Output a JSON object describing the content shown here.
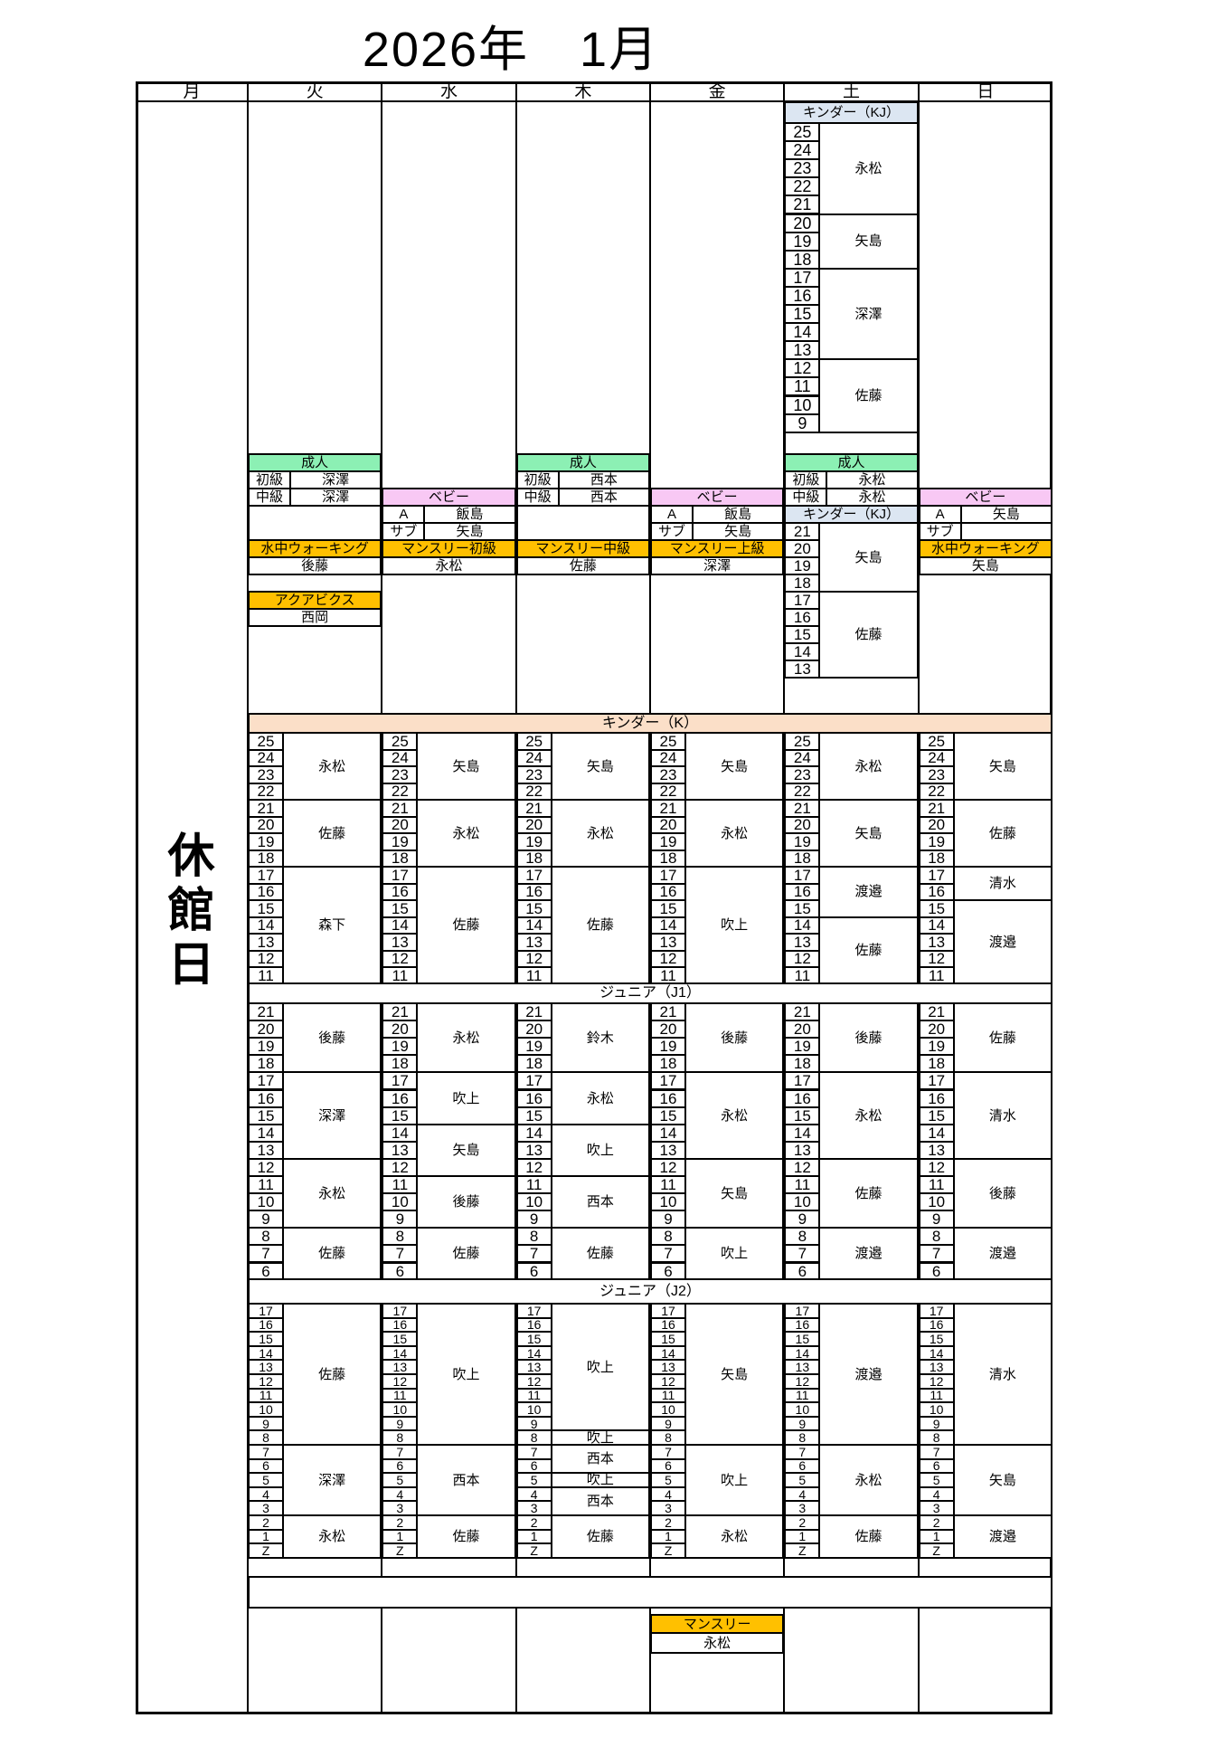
{
  "title": "2026年　1月",
  "weekdays": [
    "月",
    "火",
    "水",
    "木",
    "金",
    "土",
    "日"
  ],
  "closed_label": "休館日",
  "colors": {
    "adult": "#8CF0B4",
    "baby": "#F8C8F4",
    "program": "#FFC000",
    "kinder_kj": "#DCE6F2",
    "kinder_k": "#FBDFC8"
  },
  "section_headers": {
    "adult": "成人",
    "baby": "ベビー",
    "kinder_kj": "キンダー（KJ）",
    "kinder_k": "キンダー（K）",
    "junior_j1": "ジュニア（J1）",
    "junior_j2": "ジュニア（J2）"
  },
  "saturday_top_kinder": {
    "header": "キンダー（KJ）",
    "groups": [
      {
        "levels": [
          "25",
          "24",
          "23",
          "22",
          "21"
        ],
        "teacher": "永松"
      },
      {
        "levels": [
          "20",
          "19",
          "18"
        ],
        "teacher": "矢島"
      },
      {
        "levels": [
          "17",
          "16",
          "15",
          "14",
          "13"
        ],
        "teacher": "深澤"
      },
      {
        "levels": [
          "12",
          "11",
          "10",
          "9"
        ],
        "teacher": "佐藤"
      }
    ]
  },
  "mid_section": {
    "tue": {
      "adult": [
        {
          "label": "初級",
          "teacher": "深澤"
        },
        {
          "label": "中級",
          "teacher": "深澤"
        }
      ],
      "program": {
        "label": "水中ウォーキング",
        "teacher": "後藤"
      },
      "aqua": {
        "label": "アクアビクス",
        "teacher": "西岡"
      }
    },
    "wed": {
      "baby": [
        {
          "label": "A",
          "teacher": "飯島"
        },
        {
          "label": "サブ",
          "teacher": "矢島"
        }
      ],
      "program": {
        "label": "マンスリー初級",
        "teacher": "永松"
      }
    },
    "thu": {
      "adult": [
        {
          "label": "初級",
          "teacher": "西本"
        },
        {
          "label": "中級",
          "teacher": "西本"
        }
      ],
      "program": {
        "label": "マンスリー中級",
        "teacher": "佐藤"
      }
    },
    "fri": {
      "baby": [
        {
          "label": "A",
          "teacher": "飯島"
        },
        {
          "label": "サブ",
          "teacher": "矢島"
        }
      ],
      "program": {
        "label": "マンスリー上級",
        "teacher": "深澤"
      }
    },
    "sat": {
      "adult": [
        {
          "label": "初級",
          "teacher": "永松"
        },
        {
          "label": "中級",
          "teacher": "永松"
        }
      ],
      "kinder_kj": {
        "header": "キンダー（KJ）",
        "groups": [
          {
            "levels": [
              "21",
              "20",
              "19",
              "18"
            ],
            "teacher": "矢島"
          },
          {
            "levels": [
              "17",
              "16",
              "15",
              "14",
              "13"
            ],
            "teacher": "佐藤"
          }
        ]
      }
    },
    "sun": {
      "baby": [
        {
          "label": "A",
          "teacher": "矢島"
        },
        {
          "label": "サブ",
          "teacher": ""
        }
      ],
      "program": {
        "label": "水中ウォーキング",
        "teacher": "矢島"
      }
    }
  },
  "kinder_k": {
    "header": "キンダー（K）",
    "columns": {
      "tue": [
        {
          "levels": [
            "25",
            "24",
            "23",
            "22"
          ],
          "teacher": "永松"
        },
        {
          "levels": [
            "21",
            "20",
            "19",
            "18"
          ],
          "teacher": "佐藤"
        },
        {
          "levels": [
            "17",
            "16",
            "15",
            "14",
            "13",
            "12",
            "11"
          ],
          "teacher": "森下"
        }
      ],
      "wed": [
        {
          "levels": [
            "25",
            "24",
            "23",
            "22"
          ],
          "teacher": "矢島"
        },
        {
          "levels": [
            "21",
            "20",
            "19",
            "18"
          ],
          "teacher": "永松"
        },
        {
          "levels": [
            "17",
            "16",
            "15",
            "14",
            "13",
            "12",
            "11"
          ],
          "teacher": "佐藤"
        }
      ],
      "thu": [
        {
          "levels": [
            "25",
            "24",
            "23",
            "22"
          ],
          "teacher": "矢島"
        },
        {
          "levels": [
            "21",
            "20",
            "19",
            "18"
          ],
          "teacher": "永松"
        },
        {
          "levels": [
            "17",
            "16",
            "15",
            "14",
            "13",
            "12",
            "11"
          ],
          "teacher": "佐藤"
        }
      ],
      "fri": [
        {
          "levels": [
            "25",
            "24",
            "23",
            "22"
          ],
          "teacher": "矢島"
        },
        {
          "levels": [
            "21",
            "20",
            "19",
            "18"
          ],
          "teacher": "永松"
        },
        {
          "levels": [
            "17",
            "16",
            "15",
            "14",
            "13",
            "12",
            "11"
          ],
          "teacher": "吹上"
        }
      ],
      "sat": [
        {
          "levels": [
            "25",
            "24",
            "23",
            "22"
          ],
          "teacher": "永松"
        },
        {
          "levels": [
            "21",
            "20",
            "19",
            "18"
          ],
          "teacher": "矢島"
        },
        {
          "levels": [
            "17",
            "16",
            "15"
          ],
          "teacher": "渡邉"
        },
        {
          "levels": [
            "14",
            "13",
            "12",
            "11"
          ],
          "teacher": "佐藤"
        }
      ],
      "sun": [
        {
          "levels": [
            "25",
            "24",
            "23",
            "22"
          ],
          "teacher": "矢島"
        },
        {
          "levels": [
            "21",
            "20",
            "19",
            "18"
          ],
          "teacher": "佐藤"
        },
        {
          "levels": [
            "17",
            "16"
          ],
          "teacher": "清水"
        },
        {
          "levels": [
            "15",
            "14",
            "13",
            "12",
            "11"
          ],
          "teacher": "渡邉"
        }
      ]
    }
  },
  "junior_j1": {
    "header": "ジュニア（J1）",
    "columns": {
      "tue": [
        {
          "levels": [
            "21",
            "20",
            "19",
            "18"
          ],
          "teacher": "後藤"
        },
        {
          "levels": [
            "17",
            "16",
            "15",
            "14",
            "13"
          ],
          "teacher": "深澤"
        },
        {
          "levels": [
            "12",
            "11",
            "10",
            "9"
          ],
          "teacher": "永松"
        },
        {
          "levels": [
            "8",
            "7",
            "6"
          ],
          "teacher": "佐藤"
        }
      ],
      "wed": [
        {
          "levels": [
            "21",
            "20",
            "19",
            "18"
          ],
          "teacher": "永松"
        },
        {
          "levels": [
            "17",
            "16",
            "15"
          ],
          "teacher": "吹上"
        },
        {
          "levels": [
            "14",
            "13",
            "12"
          ],
          "teacher": "矢島"
        },
        {
          "levels": [
            "11",
            "10",
            "9"
          ],
          "teacher": "後藤"
        },
        {
          "levels": [
            "8",
            "7",
            "6"
          ],
          "teacher": "佐藤"
        }
      ],
      "thu": [
        {
          "levels": [
            "21",
            "20",
            "19",
            "18"
          ],
          "teacher": "鈴木"
        },
        {
          "levels": [
            "17",
            "16",
            "15"
          ],
          "teacher": "永松"
        },
        {
          "levels": [
            "14",
            "13",
            "12"
          ],
          "teacher": "吹上"
        },
        {
          "levels": [
            "11",
            "10",
            "9"
          ],
          "teacher": "西本"
        },
        {
          "levels": [
            "8",
            "7",
            "6"
          ],
          "teacher": "佐藤"
        }
      ],
      "fri": [
        {
          "levels": [
            "21",
            "20",
            "19",
            "18"
          ],
          "teacher": "後藤"
        },
        {
          "levels": [
            "17",
            "16",
            "15",
            "14",
            "13"
          ],
          "teacher": "永松"
        },
        {
          "levels": [
            "12",
            "11",
            "10",
            "9"
          ],
          "teacher": "矢島"
        },
        {
          "levels": [
            "8",
            "7",
            "6"
          ],
          "teacher": "吹上"
        }
      ],
      "sat": [
        {
          "levels": [
            "21",
            "20",
            "19",
            "18"
          ],
          "teacher": "後藤"
        },
        {
          "levels": [
            "17",
            "16",
            "15",
            "14",
            "13"
          ],
          "teacher": "永松"
        },
        {
          "levels": [
            "12",
            "11",
            "10",
            "9"
          ],
          "teacher": "佐藤"
        },
        {
          "levels": [
            "8",
            "7",
            "6"
          ],
          "teacher": "渡邉"
        }
      ],
      "sun": [
        {
          "levels": [
            "21",
            "20",
            "19",
            "18"
          ],
          "teacher": "佐藤"
        },
        {
          "levels": [
            "17",
            "16",
            "15",
            "14",
            "13"
          ],
          "teacher": "清水"
        },
        {
          "levels": [
            "12",
            "11",
            "10",
            "9"
          ],
          "teacher": "後藤"
        },
        {
          "levels": [
            "8",
            "7",
            "6"
          ],
          "teacher": "渡邉"
        }
      ]
    }
  },
  "junior_j2": {
    "header": "ジュニア（J2）",
    "columns": {
      "tue": [
        {
          "levels": [
            "17",
            "16",
            "15",
            "14",
            "13",
            "12",
            "11",
            "10",
            "9",
            "8"
          ],
          "teacher": "佐藤"
        },
        {
          "levels": [
            "7",
            "6",
            "5",
            "4",
            "3"
          ],
          "teacher": "深澤"
        },
        {
          "levels": [
            "2",
            "1",
            "Z"
          ],
          "teacher": "永松"
        }
      ],
      "wed": [
        {
          "levels": [
            "17",
            "16",
            "15",
            "14",
            "13",
            "12",
            "11",
            "10",
            "9",
            "8"
          ],
          "teacher": "吹上"
        },
        {
          "levels": [
            "7",
            "6",
            "5",
            "4",
            "3"
          ],
          "teacher": "西本"
        },
        {
          "levels": [
            "2",
            "1",
            "Z"
          ],
          "teacher": "佐藤"
        }
      ],
      "thu": [
        {
          "levels": [
            "17",
            "16",
            "15",
            "14",
            "13",
            "12",
            "11",
            "10",
            "9"
          ],
          "teacher": "吹上"
        },
        {
          "levels": [
            "8"
          ],
          "teacher": "吹上"
        },
        {
          "levels": [
            "7",
            "6"
          ],
          "teacher": "西本"
        },
        {
          "levels": [
            "5"
          ],
          "teacher": "吹上"
        },
        {
          "levels": [
            "4",
            "3"
          ],
          "teacher": "西本"
        },
        {
          "levels": [
            "2",
            "1",
            "Z"
          ],
          "teacher": "佐藤"
        }
      ],
      "fri": [
        {
          "levels": [
            "17",
            "16",
            "15",
            "14",
            "13",
            "12",
            "11",
            "10",
            "9",
            "8"
          ],
          "teacher": "矢島"
        },
        {
          "levels": [
            "7",
            "6",
            "5",
            "4",
            "3"
          ],
          "teacher": "吹上"
        },
        {
          "levels": [
            "2",
            "1",
            "Z"
          ],
          "teacher": "永松"
        }
      ],
      "sat": [
        {
          "levels": [
            "17",
            "16",
            "15",
            "14",
            "13",
            "12",
            "11",
            "10",
            "9",
            "8"
          ],
          "teacher": "渡邉"
        },
        {
          "levels": [
            "7",
            "6",
            "5",
            "4",
            "3"
          ],
          "teacher": "永松"
        },
        {
          "levels": [
            "2",
            "1",
            "Z"
          ],
          "teacher": "佐藤"
        }
      ],
      "sun": [
        {
          "levels": [
            "17",
            "16",
            "15",
            "14",
            "13",
            "12",
            "11",
            "10",
            "9",
            "8"
          ],
          "teacher": "清水"
        },
        {
          "levels": [
            "7",
            "6",
            "5",
            "4",
            "3"
          ],
          "teacher": "矢島"
        },
        {
          "levels": [
            "2",
            "1",
            "Z"
          ],
          "teacher": "渡邉"
        }
      ]
    }
  },
  "bottom": {
    "monthly_label": "マンスリー",
    "monthly_teacher": "永松"
  }
}
